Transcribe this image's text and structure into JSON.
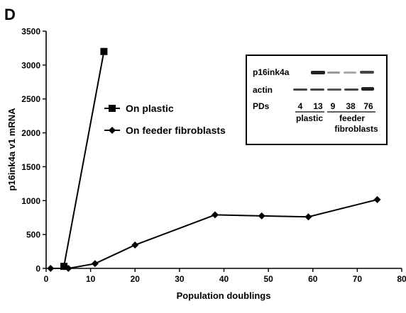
{
  "panel_label": "D",
  "chart_data": {
    "type": "line",
    "xlabel": "Population doublings",
    "ylabel": "p16ink4a v1 mRNA",
    "xlim": [
      0,
      80
    ],
    "ylim": [
      0,
      3500
    ],
    "x_ticks": [
      0,
      10,
      20,
      30,
      40,
      50,
      60,
      70,
      80
    ],
    "y_ticks": [
      0,
      500,
      1000,
      1500,
      2000,
      2500,
      3000,
      3500
    ],
    "x_tick_labels": [
      "0",
      "10",
      "20",
      "30",
      "40",
      "50",
      "60",
      "70",
      "80"
    ],
    "y_tick_labels": [
      "0",
      "500",
      "1000",
      "1500",
      "2000",
      "2500",
      "3000",
      "3500"
    ],
    "grid": false,
    "legend_position": "center-left",
    "series": [
      {
        "name": "On plastic",
        "marker": "square",
        "x": [
          4,
          13
        ],
        "y": [
          30,
          3200
        ]
      },
      {
        "name": "On feeder fibroblasts",
        "marker": "diamond",
        "x": [
          1,
          5,
          11,
          20,
          38,
          48.5,
          59,
          74.5
        ],
        "y": [
          0,
          0,
          70,
          345,
          790,
          775,
          760,
          1015
        ]
      }
    ],
    "inset": {
      "row_labels": [
        "p16ink4a",
        "actin",
        "PDs"
      ],
      "pd_values": [
        "4",
        "13",
        "9",
        "38",
        "76"
      ],
      "group_labels": [
        "plastic",
        "feeder",
        "fibroblasts"
      ]
    }
  }
}
